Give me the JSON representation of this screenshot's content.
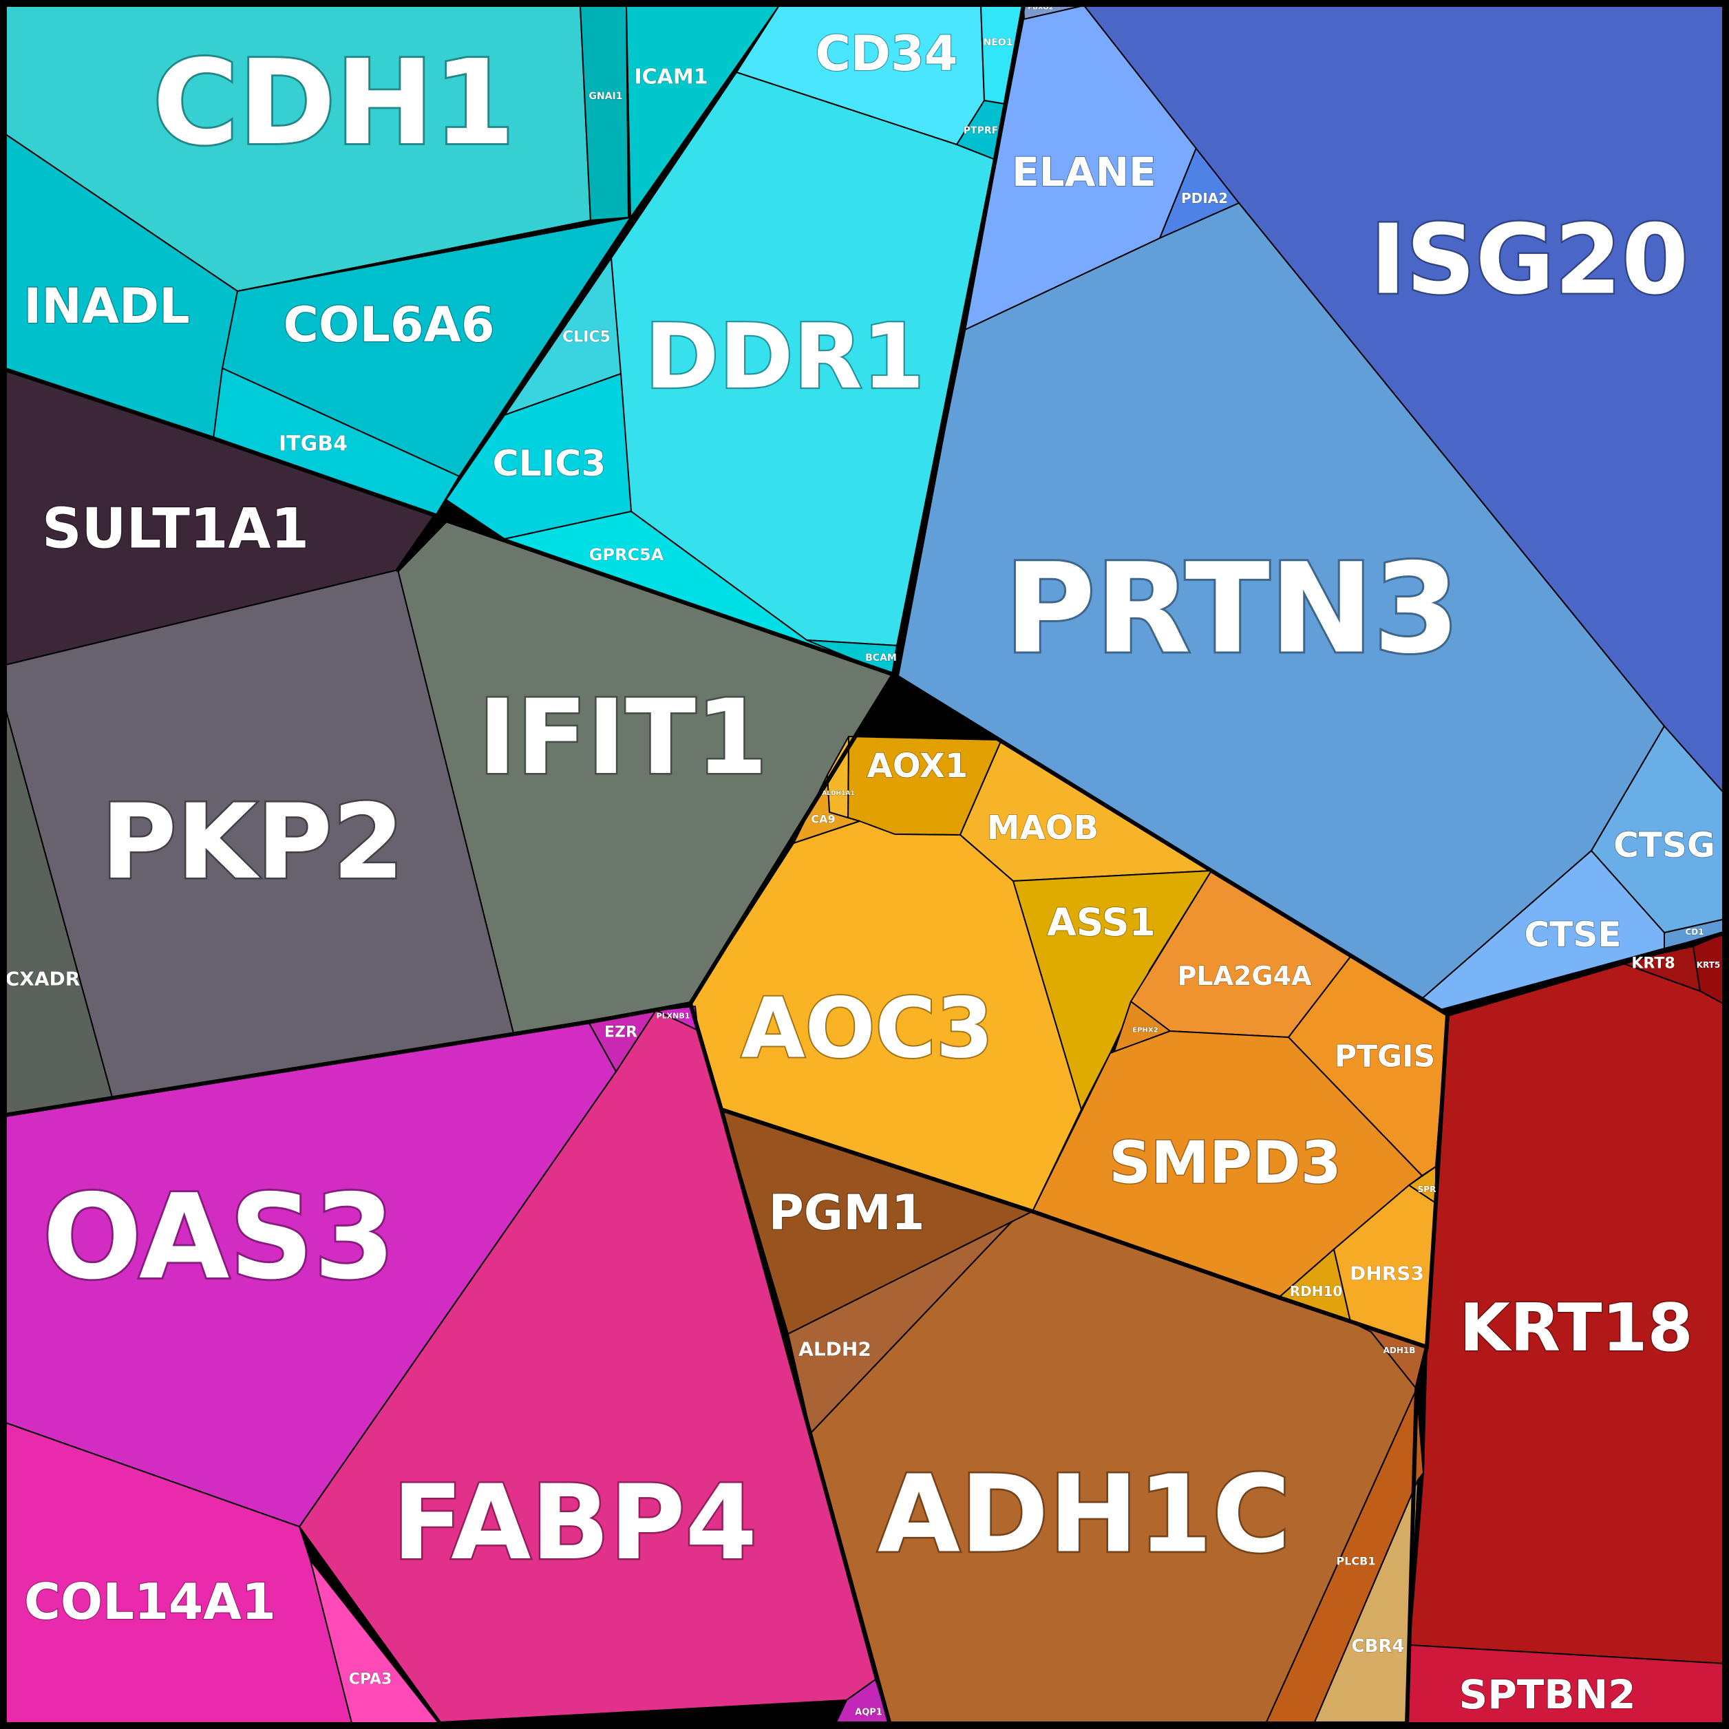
{
  "chart_data": {
    "type": "voronoi-treemap",
    "title": "",
    "groups": [
      {
        "name": "cyan",
        "color": "#2ed3df",
        "cells": [
          {
            "id": "cdh1",
            "label": "CDH1",
            "color": "#36d0d2"
          },
          {
            "id": "gnai1",
            "label": "GNAI1",
            "color": "#00b2b5"
          },
          {
            "id": "icam1",
            "label": "ICAM1",
            "color": "#00c7cb"
          },
          {
            "id": "inadl",
            "label": "INADL",
            "color": "#00c0cc"
          },
          {
            "id": "col6a6",
            "label": "COL6A6",
            "color": "#00bfcc"
          },
          {
            "id": "itgb4",
            "label": "ITGB4",
            "color": "#00ccd9"
          },
          {
            "id": "cd34",
            "label": "CD34",
            "color": "#4ae6ff"
          },
          {
            "id": "neo1",
            "label": "NEO1",
            "color": "#30e6f8"
          },
          {
            "id": "ptprf",
            "label": "PTPRF",
            "color": "#00bfd0"
          },
          {
            "id": "ddr1",
            "label": "DDR1",
            "color": "#36e0ec"
          },
          {
            "id": "clic5",
            "label": "CLIC5",
            "color": "#3ad3e0"
          },
          {
            "id": "clic3",
            "label": "CLIC3",
            "color": "#00d2df"
          },
          {
            "id": "gprc5a",
            "label": "GPRC5A",
            "color": "#00dfe6"
          },
          {
            "id": "bcam",
            "label": "BCAM",
            "color": "#00c8d2"
          }
        ]
      },
      {
        "name": "blue",
        "color": "#5d9bd6",
        "cells": [
          {
            "id": "fbxo2",
            "label": "FBXO2",
            "color": "#7a9ad0"
          },
          {
            "id": "elane",
            "label": "ELANE",
            "color": "#7aaaff"
          },
          {
            "id": "pdia2",
            "label": "PDIA2",
            "color": "#4f82e6"
          },
          {
            "id": "isg20",
            "label": "ISG20",
            "color": "#4a67c8"
          },
          {
            "id": "prtn3",
            "label": "PRTN3",
            "color": "#629ed8"
          },
          {
            "id": "ctsg",
            "label": "CTSG",
            "color": "#6aaee8"
          },
          {
            "id": "ctse",
            "label": "CTSE",
            "color": "#78b4f7"
          },
          {
            "id": "cd1x",
            "label": "CD1",
            "color": "#5e9ad6"
          }
        ]
      },
      {
        "name": "gray",
        "color": "#5e5e66",
        "cells": [
          {
            "id": "sult1a1",
            "label": "SULT1A1",
            "color": "#3c2739"
          },
          {
            "id": "pkp2",
            "label": "PKP2",
            "color": "#67626d"
          },
          {
            "id": "ifit1",
            "label": "IFIT1",
            "color": "#6b776b"
          },
          {
            "id": "cxadr",
            "label": "CXADR",
            "color": "#5b615b"
          }
        ]
      },
      {
        "name": "orange",
        "color": "#eba020",
        "cells": [
          {
            "id": "aox1",
            "label": "AOX1",
            "color": "#e29f00"
          },
          {
            "id": "aldh1a1",
            "label": "ALDH1A1",
            "color": "#f5b62a"
          },
          {
            "id": "ca9",
            "label": "CA9",
            "color": "#eba020"
          },
          {
            "id": "maob",
            "label": "MAOB",
            "color": "#f8b429"
          },
          {
            "id": "ass1",
            "label": "ASS1",
            "color": "#dfab00"
          },
          {
            "id": "aoc3",
            "label": "AOC3",
            "color": "#fab324"
          },
          {
            "id": "pla2g4a",
            "label": "PLA2G4A",
            "color": "#ef9330"
          },
          {
            "id": "ephx2",
            "label": "EPHX2",
            "color": "#e38a1e"
          },
          {
            "id": "ptgis",
            "label": "PTGIS",
            "color": "#f09424"
          },
          {
            "id": "smpd3",
            "label": "SMPD3",
            "color": "#ea8e1f"
          },
          {
            "id": "spr",
            "label": "SPR",
            "color": "#e8a418"
          },
          {
            "id": "rdh10",
            "label": "RDH10",
            "color": "#e2a20e"
          },
          {
            "id": "dhrs3",
            "label": "DHRS3",
            "color": "#f7aa25"
          }
        ]
      },
      {
        "name": "brown",
        "color": "#a8622c",
        "cells": [
          {
            "id": "pgm1",
            "label": "PGM1",
            "color": "#99531e"
          },
          {
            "id": "aldh2",
            "label": "ALDH2",
            "color": "#aa6334"
          },
          {
            "id": "adh1c",
            "label": "ADH1C",
            "color": "#b2682c"
          },
          {
            "id": "adh1b",
            "label": "ADH1B",
            "color": "#b45f2c"
          },
          {
            "id": "plcb1",
            "label": "PLCB1",
            "color": "#c05d18"
          },
          {
            "id": "cbr4",
            "label": "CBR4",
            "color": "#d6ac64"
          }
        ]
      },
      {
        "name": "red",
        "color": "#b21919",
        "cells": [
          {
            "id": "krt8",
            "label": "KRT8",
            "color": "#a01212"
          },
          {
            "id": "krt5",
            "label": "KRT5",
            "color": "#960c0c"
          },
          {
            "id": "krt18",
            "label": "KRT18",
            "color": "#b21818"
          },
          {
            "id": "sptbn2",
            "label": "SPTBN2",
            "color": "#d0173c"
          }
        ]
      },
      {
        "name": "magenta",
        "color": "#d82ab0",
        "cells": [
          {
            "id": "ezr",
            "label": "EZR",
            "color": "#c828b2"
          },
          {
            "id": "plxnb1",
            "label": "PLXNB1",
            "color": "#d026c6"
          },
          {
            "id": "oas3",
            "label": "OAS3",
            "color": "#d22cc2"
          },
          {
            "id": "fabp4",
            "label": "FABP4",
            "color": "#e2318a"
          },
          {
            "id": "col14a1",
            "label": "COL14A1",
            "color": "#ea2aac"
          },
          {
            "id": "cpa3",
            "label": "CPA3",
            "color": "#ff4ab8"
          },
          {
            "id": "aqp1",
            "label": "AQP1",
            "color": "#c227b8"
          }
        ]
      }
    ]
  }
}
